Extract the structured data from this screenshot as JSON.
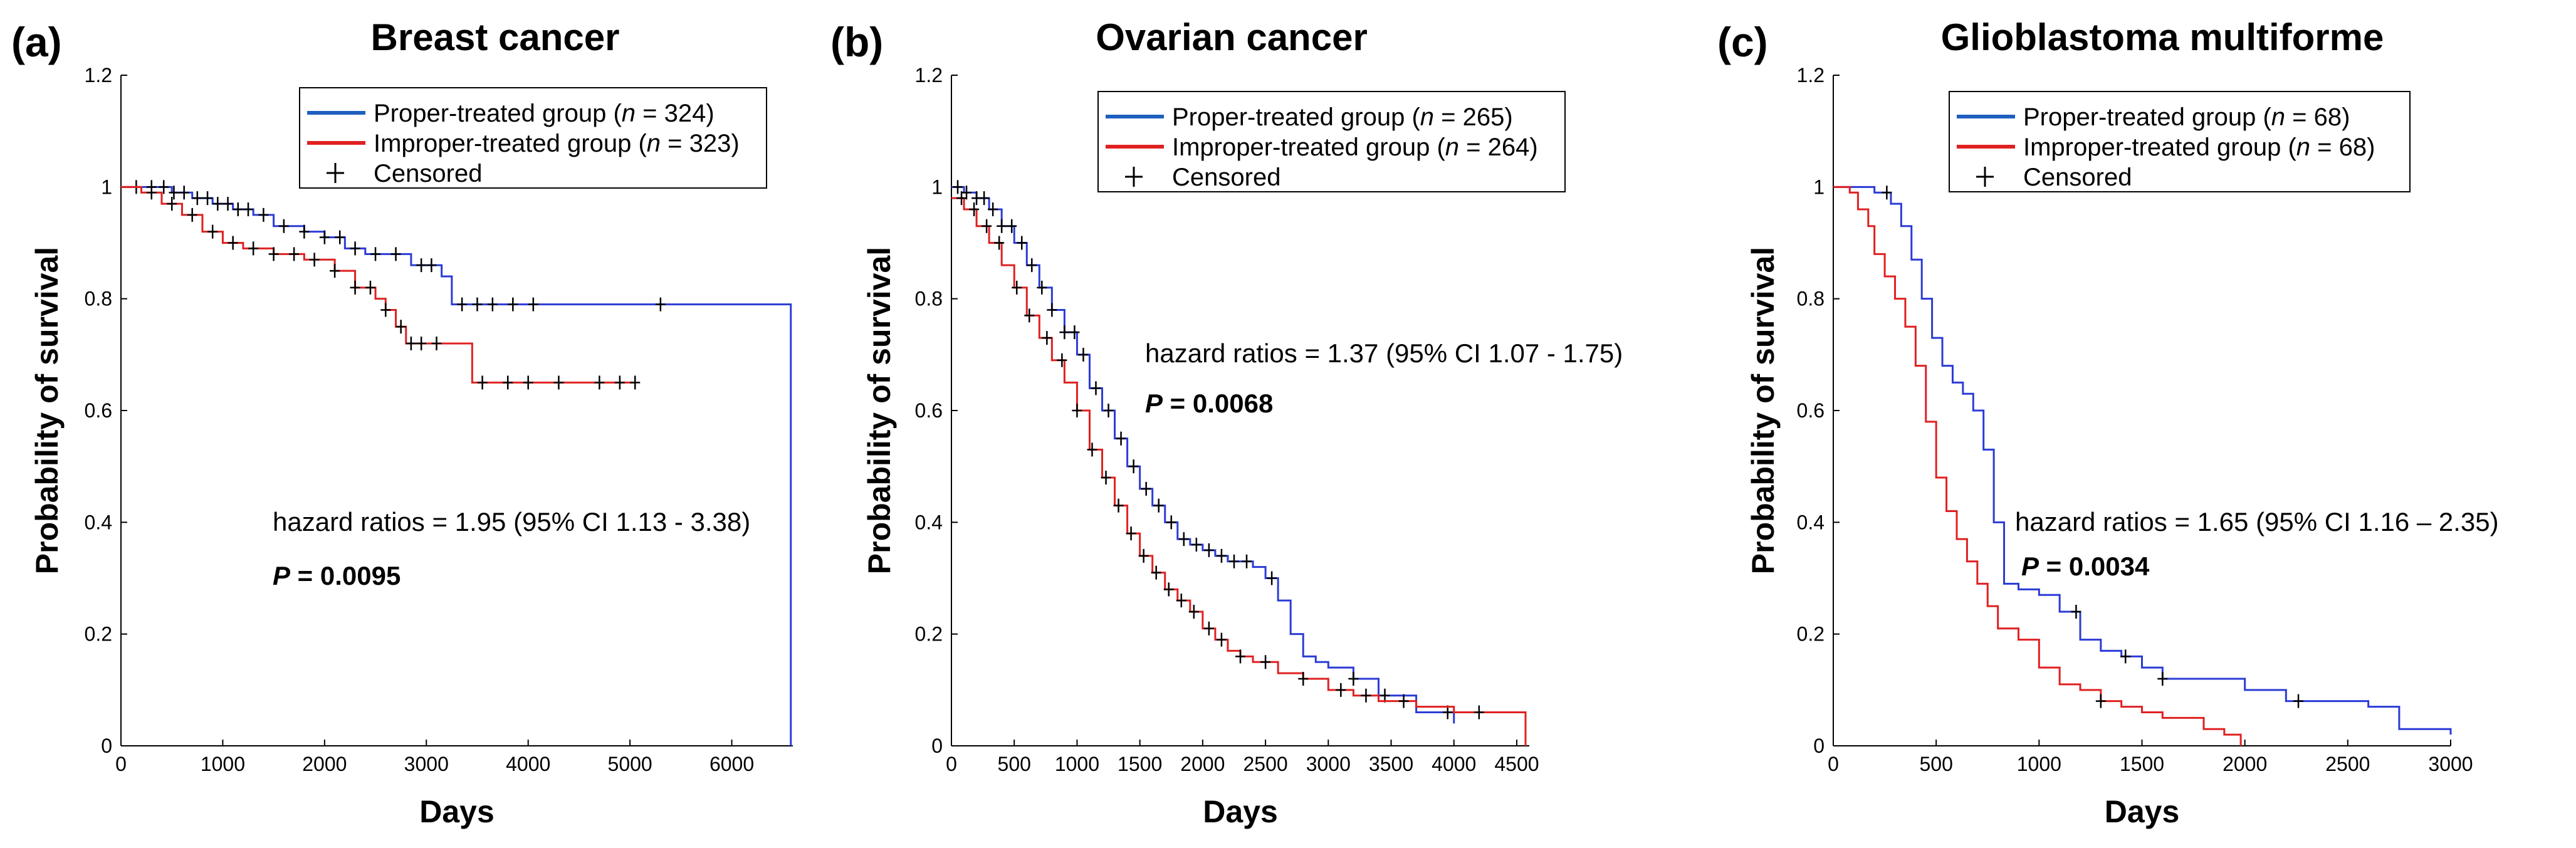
{
  "chart_data": [
    {
      "panel": "(a)",
      "type": "line",
      "title": "Breast cancer",
      "xlabel": "Days",
      "ylabel": "Probability of survival",
      "xlim": [
        0,
        6600
      ],
      "ylim": [
        0,
        1.2
      ],
      "xticks": [
        0,
        1000,
        2000,
        3000,
        4000,
        5000,
        6000
      ],
      "yticks": [
        0,
        0.2,
        0.4,
        0.6,
        0.8,
        1,
        1.2
      ],
      "legend": {
        "position": "top-right",
        "entries": [
          {
            "text": "Proper-treated group (",
            "italic": "n",
            "rest": " = 324)",
            "color": "#1f5fbf"
          },
          {
            "text": "Improper-treated group (",
            "italic": "n",
            "rest": " = 323)",
            "color": "#e02020"
          },
          {
            "text": "Censored",
            "marker": "plus"
          }
        ]
      },
      "annotation": "hazard ratios = 1.95 (95% CI 1.13 - 3.38)",
      "p_label": "P",
      "p_value": " = 0.0095",
      "series": [
        {
          "name": "Proper-treated group",
          "color": "#2b3bd6",
          "x": [
            0,
            250,
            500,
            700,
            900,
            1100,
            1300,
            1500,
            1800,
            2000,
            2200,
            2400,
            2800,
            2850,
            3050,
            3150,
            3250,
            4000,
            5300,
            6580,
            6580
          ],
          "y": [
            1.0,
            1.0,
            0.99,
            0.98,
            0.97,
            0.96,
            0.95,
            0.93,
            0.92,
            0.91,
            0.89,
            0.88,
            0.88,
            0.86,
            0.86,
            0.84,
            0.79,
            0.79,
            0.79,
            0.79,
            0.0
          ],
          "censored_x": [
            150,
            300,
            420,
            520,
            620,
            750,
            850,
            950,
            1050,
            1150,
            1250,
            1400,
            1600,
            1800,
            2000,
            2150,
            2300,
            2500,
            2700,
            2950,
            3050,
            3350,
            3500,
            3650,
            3850,
            4050,
            5300
          ]
        },
        {
          "name": "Improper-treated group",
          "color": "#e02020",
          "x": [
            0,
            200,
            400,
            600,
            800,
            1000,
            1200,
            1500,
            1800,
            2100,
            2300,
            2500,
            2600,
            2700,
            2800,
            3000,
            3300,
            3450,
            3450,
            5050
          ],
          "y": [
            1.0,
            0.99,
            0.97,
            0.95,
            0.92,
            0.9,
            0.89,
            0.88,
            0.87,
            0.85,
            0.82,
            0.8,
            0.78,
            0.75,
            0.72,
            0.72,
            0.72,
            0.72,
            0.65,
            0.65
          ],
          "censored_x": [
            300,
            500,
            700,
            900,
            1100,
            1300,
            1500,
            1700,
            1900,
            2100,
            2300,
            2450,
            2600,
            2750,
            2850,
            2950,
            3100,
            3550,
            3800,
            4000,
            4300,
            4700,
            4900,
            5050
          ]
        }
      ]
    },
    {
      "panel": "(b)",
      "type": "line",
      "title": "Ovarian cancer",
      "xlabel": "Days",
      "ylabel": "Probability of survival",
      "xlim": [
        0,
        4600
      ],
      "ylim": [
        0,
        1.2
      ],
      "xticks": [
        0,
        500,
        1000,
        1500,
        2000,
        2500,
        3000,
        3500,
        4000,
        4500
      ],
      "yticks": [
        0,
        0.2,
        0.4,
        0.6,
        0.8,
        1,
        1.2
      ],
      "legend": {
        "position": "top-right",
        "entries": [
          {
            "text": "Proper-treated group (",
            "italic": "n",
            "rest": " = 265)",
            "color": "#1f5fbf"
          },
          {
            "text": "Improper-treated group (",
            "italic": "n",
            "rest": " = 264)",
            "color": "#e02020"
          },
          {
            "text": "Censored",
            "marker": "plus"
          }
        ]
      },
      "annotation": "hazard ratios = 1.37 (95% CI 1.07 - 1.75)",
      "p_label": "P",
      "p_value": " = 0.0068",
      "series": [
        {
          "name": "Proper-treated group",
          "color": "#2b3bd6",
          "x": [
            0,
            100,
            200,
            300,
            400,
            500,
            600,
            700,
            800,
            900,
            1000,
            1100,
            1200,
            1300,
            1400,
            1500,
            1600,
            1700,
            1800,
            1900,
            2000,
            2100,
            2200,
            2300,
            2400,
            2500,
            2600,
            2700,
            2800,
            2900,
            3000,
            3100,
            3200,
            3400,
            3600,
            3700,
            4000
          ],
          "y": [
            1.0,
            0.99,
            0.98,
            0.96,
            0.93,
            0.9,
            0.86,
            0.82,
            0.78,
            0.74,
            0.7,
            0.64,
            0.6,
            0.55,
            0.5,
            0.46,
            0.43,
            0.4,
            0.37,
            0.36,
            0.35,
            0.34,
            0.33,
            0.33,
            0.32,
            0.3,
            0.26,
            0.2,
            0.16,
            0.15,
            0.14,
            0.14,
            0.12,
            0.09,
            0.09,
            0.06,
            0.04
          ],
          "censored_x": [
            50,
            120,
            200,
            260,
            330,
            400,
            480,
            560,
            640,
            720,
            800,
            900,
            980,
            1050,
            1150,
            1250,
            1350,
            1450,
            1550,
            1650,
            1750,
            1850,
            1950,
            2050,
            2150,
            2250,
            2350,
            2550,
            3200,
            3450,
            3950
          ]
        },
        {
          "name": "Improper-treated group",
          "color": "#e02020",
          "x": [
            0,
            100,
            200,
            300,
            400,
            500,
            600,
            700,
            800,
            900,
            1000,
            1100,
            1200,
            1300,
            1400,
            1500,
            1600,
            1700,
            1800,
            1900,
            2000,
            2100,
            2200,
            2300,
            2400,
            2600,
            2800,
            3000,
            3200,
            3400,
            3700,
            4000,
            4570,
            4570
          ],
          "y": [
            0.98,
            0.96,
            0.93,
            0.9,
            0.86,
            0.82,
            0.77,
            0.73,
            0.69,
            0.65,
            0.6,
            0.53,
            0.48,
            0.43,
            0.38,
            0.34,
            0.31,
            0.28,
            0.26,
            0.24,
            0.21,
            0.19,
            0.17,
            0.16,
            0.15,
            0.13,
            0.12,
            0.1,
            0.09,
            0.08,
            0.07,
            0.06,
            0.06,
            0.0
          ],
          "censored_x": [
            80,
            180,
            280,
            380,
            520,
            620,
            760,
            880,
            1000,
            1120,
            1230,
            1330,
            1430,
            1530,
            1630,
            1730,
            1830,
            1930,
            2050,
            2150,
            2300,
            2500,
            2800,
            3100,
            3300,
            3600,
            4200
          ]
        }
      ]
    },
    {
      "panel": "(c)",
      "type": "line",
      "title": "Glioblastoma multiforme",
      "xlabel": "Days",
      "ylabel": "Probability of survival",
      "xlim": [
        0,
        3000
      ],
      "ylim": [
        0,
        1.2
      ],
      "xticks": [
        0,
        500,
        1000,
        1500,
        2000,
        2500,
        3000
      ],
      "yticks": [
        0,
        0.2,
        0.4,
        0.6,
        0.8,
        1,
        1.2
      ],
      "legend": {
        "position": "top-right",
        "entries": [
          {
            "text": "Proper-treated group (",
            "italic": "n",
            "rest": " = 68)",
            "color": "#1f5fbf"
          },
          {
            "text": "Improper-treated group (",
            "italic": "n",
            "rest": " = 68)",
            "color": "#e02020"
          },
          {
            "text": "Censored",
            "marker": "plus"
          }
        ]
      },
      "annotation": "hazard ratios = 1.65 (95% CI 1.16 – 2.35)",
      "p_label": "P",
      "p_value": " = 0.0034",
      "series": [
        {
          "name": "Proper-treated group",
          "color": "#2b3bd6",
          "x": [
            0,
            150,
            200,
            280,
            330,
            380,
            430,
            480,
            530,
            580,
            630,
            680,
            730,
            780,
            830,
            900,
            1000,
            1100,
            1200,
            1300,
            1400,
            1500,
            1600,
            1800,
            2000,
            2100,
            2200,
            2400,
            2600,
            2750,
            3000
          ],
          "y": [
            1.0,
            1.0,
            0.99,
            0.97,
            0.93,
            0.87,
            0.8,
            0.73,
            0.68,
            0.65,
            0.63,
            0.6,
            0.53,
            0.4,
            0.29,
            0.28,
            0.27,
            0.24,
            0.19,
            0.17,
            0.16,
            0.14,
            0.12,
            0.12,
            0.1,
            0.1,
            0.08,
            0.08,
            0.07,
            0.03,
            0.02
          ],
          "censored_x": [
            260,
            1180,
            1420,
            1600,
            2260
          ]
        },
        {
          "name": "Improper-treated group",
          "color": "#e02020",
          "x": [
            0,
            80,
            120,
            170,
            200,
            250,
            300,
            350,
            400,
            450,
            500,
            550,
            600,
            650,
            700,
            750,
            800,
            900,
            1000,
            1100,
            1200,
            1300,
            1400,
            1500,
            1600,
            1800,
            1900,
            1980,
            1980
          ],
          "y": [
            1.0,
            0.99,
            0.96,
            0.93,
            0.88,
            0.84,
            0.8,
            0.75,
            0.68,
            0.58,
            0.48,
            0.42,
            0.37,
            0.33,
            0.29,
            0.25,
            0.21,
            0.19,
            0.14,
            0.11,
            0.1,
            0.08,
            0.07,
            0.06,
            0.05,
            0.03,
            0.02,
            0.02,
            0.0
          ],
          "censored_x": [
            1300
          ]
        }
      ]
    }
  ]
}
